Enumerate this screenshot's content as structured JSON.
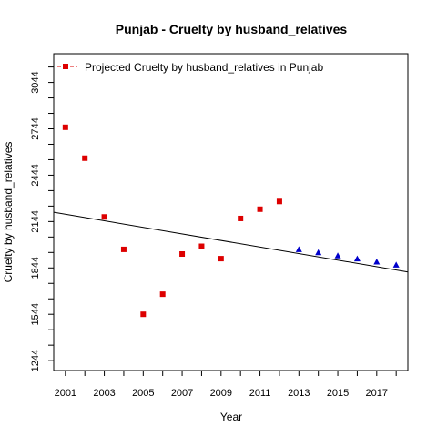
{
  "chart_data": {
    "type": "scatter",
    "title": "Punjab  -  Cruelty by husband_relatives",
    "xlabel": "Year",
    "ylabel": "Cruelty by husband_relatives",
    "xlim": [
      2000.4,
      2018.6
    ],
    "ylim": [
      1180,
      3230
    ],
    "x_ticks": [
      2001,
      2003,
      2005,
      2007,
      2009,
      2011,
      2013,
      2015,
      2017
    ],
    "x_minor_ticks": [
      2001,
      2002,
      2003,
      2004,
      2005,
      2006,
      2007,
      2008,
      2009,
      2010,
      2011,
      2012,
      2013,
      2014,
      2015,
      2016,
      2017,
      2018
    ],
    "y_ticks": [
      1244,
      1544,
      1844,
      2144,
      2444,
      2744,
      3044
    ],
    "y_minor_ticks": [
      1244,
      1344,
      1444,
      1544,
      1644,
      1744,
      1844,
      1944,
      2044,
      2144,
      2244,
      2344,
      2444,
      2544,
      2644,
      2744,
      2844,
      2944,
      3044,
      3144
    ],
    "legend": {
      "position": "top-left",
      "label": "Projected  Cruelty by husband_relatives  in  Punjab"
    },
    "series": [
      {
        "marker": "square",
        "color": "#dd0000",
        "x": [
          2001,
          2002,
          2003,
          2004,
          2005,
          2006,
          2007,
          2008,
          2009,
          2010,
          2011,
          2012
        ],
        "y": [
          2754,
          2554,
          2174,
          1964,
          1544,
          1674,
          1934,
          1984,
          1904,
          2164,
          2224,
          2274
        ]
      },
      {
        "marker": "triangle",
        "color": "#0000cc",
        "x": [
          2013,
          2014,
          2015,
          2016,
          2017,
          2018
        ],
        "y": [
          1964,
          1944,
          1924,
          1904,
          1884,
          1864
        ]
      }
    ],
    "trend_line": {
      "color": "#000000",
      "x": [
        2000.4,
        2018.6
      ],
      "y": [
        2204,
        1818
      ]
    }
  }
}
